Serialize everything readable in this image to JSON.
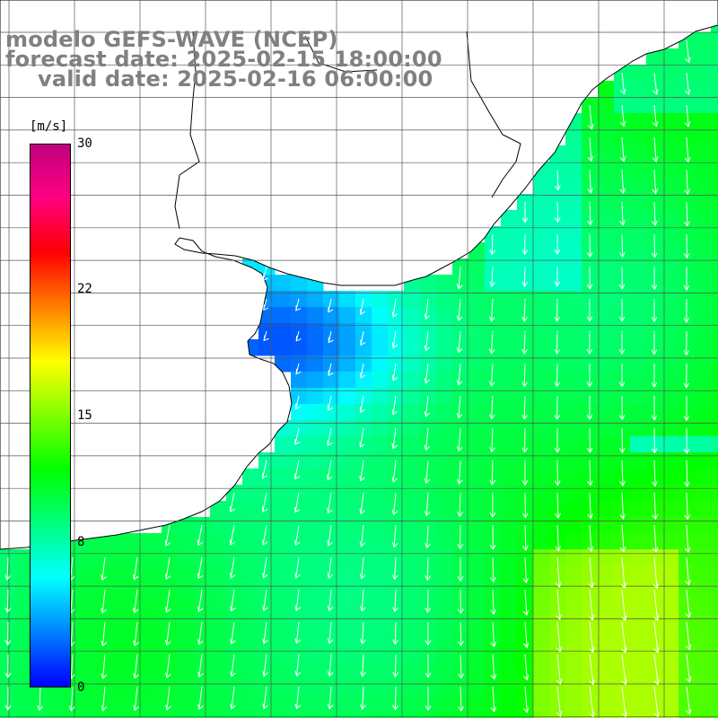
{
  "title": {
    "line1": "modelo GEFS-WAVE (NCEP)",
    "line2": "forecast date: 2025-02-15 18:00:00",
    "line3": "valid date: 2025-02-16 06:00:00"
  },
  "colorbar": {
    "unit": "[m/s]",
    "ticks": [
      {
        "value": 30,
        "label": "30"
      },
      {
        "value": 22,
        "label": "22"
      },
      {
        "value": 15,
        "label": "15"
      },
      {
        "value": 8,
        "label": "8"
      },
      {
        "value": 0,
        "label": "0"
      }
    ],
    "range": [
      0,
      30
    ],
    "colors": [
      "#0000ff",
      "#0080ff",
      "#00ffff",
      "#00ff80",
      "#00ff00",
      "#80ff00",
      "#ffff00",
      "#ff8000",
      "#ff0000",
      "#ff0080",
      "#c0007f"
    ]
  },
  "colors": {
    "land": "#ffffff",
    "coastline": "#000000",
    "grid": "#555555",
    "arrows": "#ffffff"
  },
  "map": {
    "grid_spacing_deg": 0.5,
    "field": "wind speed and direction"
  }
}
